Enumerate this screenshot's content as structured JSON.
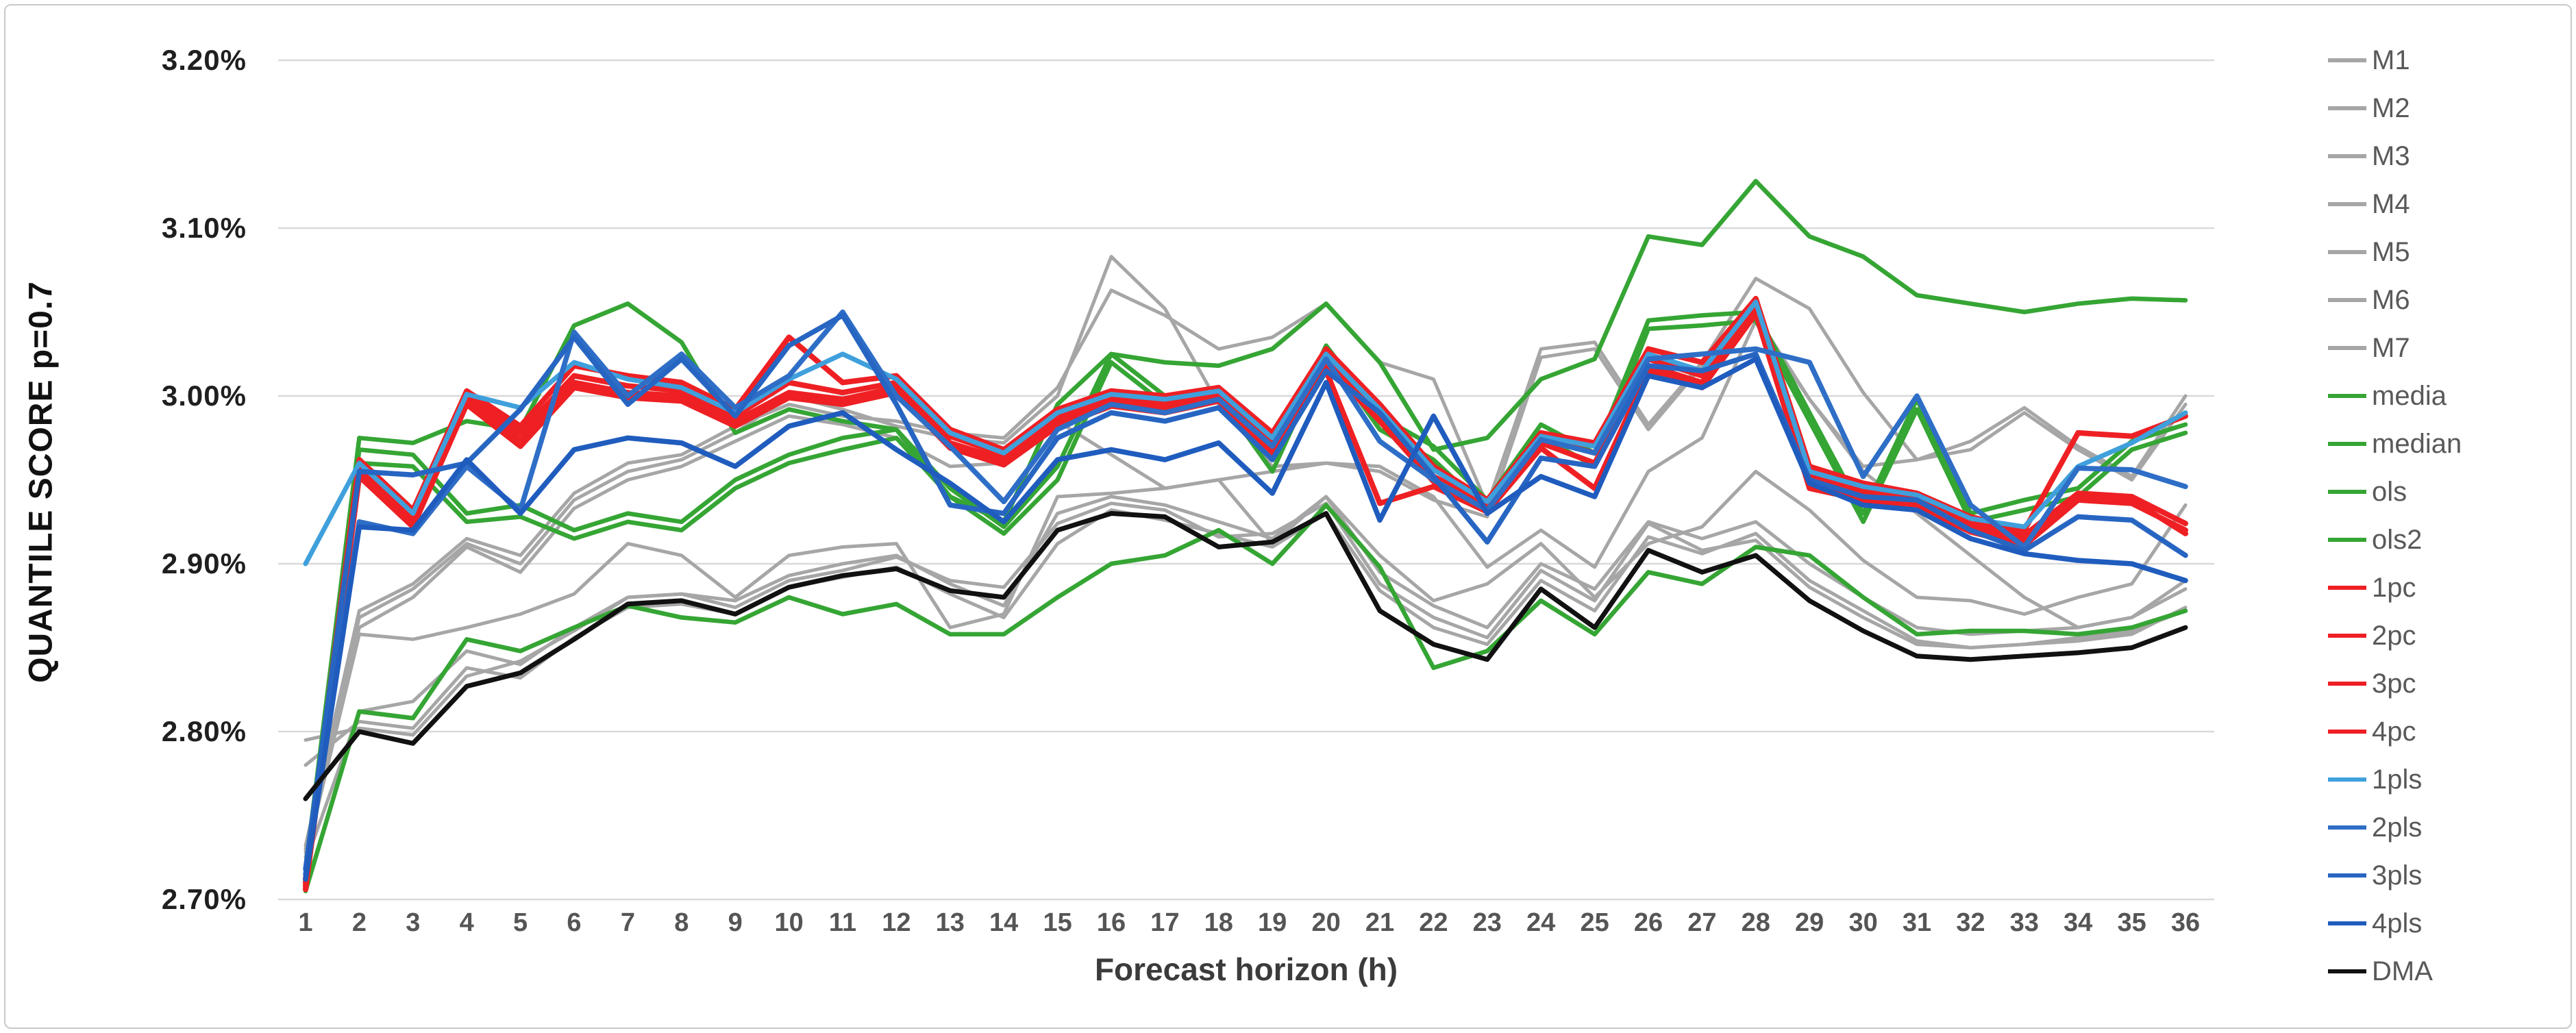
{
  "figure": {
    "background": "#ffffff",
    "border_color": "#c9c9c9"
  },
  "chart_data": {
    "type": "line",
    "title": "",
    "xlabel": "Forecast horizon (h)",
    "ylabel": "QUANTILE SCORE p=0.7",
    "grid": "horizontal",
    "gridline_color": "#d9d9d9",
    "legend_position": "right",
    "x": [
      1,
      2,
      3,
      4,
      5,
      6,
      7,
      8,
      9,
      10,
      11,
      12,
      13,
      14,
      15,
      16,
      17,
      18,
      19,
      20,
      21,
      22,
      23,
      24,
      25,
      26,
      27,
      28,
      29,
      30,
      31,
      32,
      33,
      34,
      35,
      36
    ],
    "y_axis": {
      "min": 2.7,
      "max": 3.2,
      "tick_step": 0.1,
      "unit": "percent",
      "tick_labels": [
        "3.20%",
        "3.10%",
        "3.00%",
        "2.90%",
        "2.80%",
        "2.70%"
      ]
    },
    "series": [
      {
        "name": "M1",
        "color": "#a6a6a6",
        "width": 5,
        "values": [
          2.732,
          2.872,
          2.888,
          2.915,
          2.905,
          2.942,
          2.96,
          2.965,
          2.982,
          2.995,
          2.988,
          2.985,
          2.978,
          2.975,
          3.005,
          3.063,
          3.048,
          3.028,
          3.035,
          3.055,
          3.02,
          3.01,
          2.935,
          3.028,
          3.032,
          2.983,
          3.02,
          3.07,
          3.052,
          3.002,
          2.962,
          2.973,
          2.993,
          2.97,
          2.952,
          3.0
        ]
      },
      {
        "name": "M2",
        "color": "#a6a6a6",
        "width": 5,
        "values": [
          2.73,
          2.868,
          2.885,
          2.912,
          2.9,
          2.938,
          2.955,
          2.962,
          2.978,
          3.0,
          2.992,
          2.982,
          2.975,
          2.972,
          3.0,
          3.083,
          3.052,
          2.995,
          2.958,
          2.96,
          2.958,
          2.94,
          2.898,
          2.92,
          2.898,
          2.955,
          2.975,
          3.045,
          2.998,
          2.955,
          2.93,
          2.905,
          2.88,
          2.862,
          2.868,
          2.89
        ]
      },
      {
        "name": "M3",
        "color": "#a6a6a6",
        "width": 5,
        "values": [
          2.728,
          2.862,
          2.88,
          2.91,
          2.895,
          2.933,
          2.95,
          2.958,
          2.973,
          2.988,
          2.983,
          2.975,
          2.958,
          2.96,
          2.985,
          2.965,
          2.945,
          2.95,
          2.955,
          2.96,
          2.955,
          2.938,
          2.928,
          3.023,
          3.028,
          2.98,
          3.018,
          3.048,
          2.998,
          2.958,
          2.962,
          2.968,
          2.99,
          2.968,
          2.95,
          2.995
        ]
      },
      {
        "name": "M4",
        "color": "#a6a6a6",
        "width": 5,
        "values": [
          2.725,
          2.858,
          2.855,
          2.862,
          2.87,
          2.882,
          2.912,
          2.905,
          2.88,
          2.905,
          2.91,
          2.912,
          2.862,
          2.87,
          2.94,
          2.942,
          2.945,
          2.95,
          2.912,
          2.94,
          2.905,
          2.878,
          2.888,
          2.912,
          2.88,
          2.912,
          2.922,
          2.955,
          2.932,
          2.902,
          2.88,
          2.878,
          2.87,
          2.88,
          2.888,
          2.935
        ]
      },
      {
        "name": "M5",
        "color": "#a6a6a6",
        "width": 5,
        "values": [
          2.722,
          2.812,
          2.818,
          2.848,
          2.84,
          2.862,
          2.88,
          2.882,
          2.878,
          2.893,
          2.9,
          2.905,
          2.888,
          2.875,
          2.93,
          2.94,
          2.935,
          2.925,
          2.915,
          2.94,
          2.895,
          2.875,
          2.862,
          2.9,
          2.885,
          2.925,
          2.915,
          2.925,
          2.9,
          2.88,
          2.862,
          2.858,
          2.86,
          2.862,
          2.868,
          2.885
        ]
      },
      {
        "name": "M6",
        "color": "#a6a6a6",
        "width": 5,
        "values": [
          2.78,
          2.806,
          2.802,
          2.838,
          2.832,
          2.856,
          2.874,
          2.876,
          2.87,
          2.886,
          2.892,
          2.898,
          2.882,
          2.868,
          2.912,
          2.932,
          2.926,
          2.918,
          2.91,
          2.93,
          2.884,
          2.862,
          2.852,
          2.89,
          2.872,
          2.916,
          2.906,
          2.918,
          2.89,
          2.872,
          2.854,
          2.85,
          2.852,
          2.854,
          2.858,
          2.874
        ]
      },
      {
        "name": "M7",
        "color": "#a6a6a6",
        "width": 5,
        "values": [
          2.795,
          2.802,
          2.798,
          2.833,
          2.842,
          2.86,
          2.88,
          2.882,
          2.874,
          2.89,
          2.896,
          2.904,
          2.89,
          2.886,
          2.924,
          2.936,
          2.932,
          2.916,
          2.918,
          2.936,
          2.888,
          2.868,
          2.856,
          2.896,
          2.878,
          2.924,
          2.908,
          2.914,
          2.886,
          2.868,
          2.852,
          2.85,
          2.852,
          2.856,
          2.86,
          2.872
        ]
      },
      {
        "name": "media",
        "color": "#35a534",
        "width": 6.5,
        "values": [
          2.718,
          2.975,
          2.972,
          2.985,
          2.98,
          3.042,
          3.055,
          3.032,
          2.978,
          2.992,
          2.985,
          2.98,
          2.94,
          2.925,
          2.995,
          3.025,
          3.02,
          3.018,
          3.028,
          3.055,
          3.02,
          2.968,
          2.975,
          3.01,
          3.022,
          3.095,
          3.09,
          3.128,
          3.095,
          3.083,
          3.06,
          3.055,
          3.05,
          3.055,
          3.058,
          3.057
        ]
      },
      {
        "name": "median",
        "color": "#35a534",
        "width": 6.5,
        "values": [
          2.712,
          2.968,
          2.965,
          2.93,
          2.935,
          2.92,
          2.93,
          2.925,
          2.95,
          2.965,
          2.975,
          2.98,
          2.945,
          2.922,
          2.958,
          3.025,
          3.0,
          3.005,
          2.962,
          3.03,
          2.988,
          2.97,
          2.938,
          2.983,
          2.966,
          3.045,
          3.048,
          3.05,
          2.99,
          2.93,
          2.998,
          2.93,
          2.938,
          2.945,
          2.973,
          2.983
        ]
      },
      {
        "name": "ols",
        "color": "#35a534",
        "width": 6.5,
        "values": [
          2.708,
          2.96,
          2.958,
          2.925,
          2.928,
          2.915,
          2.925,
          2.92,
          2.945,
          2.96,
          2.968,
          2.975,
          2.94,
          2.918,
          2.95,
          3.02,
          2.995,
          3.0,
          2.955,
          3.025,
          2.98,
          2.962,
          2.932,
          2.976,
          2.958,
          3.04,
          3.042,
          3.045,
          2.985,
          2.925,
          2.992,
          2.925,
          2.932,
          2.94,
          2.968,
          2.978
        ]
      },
      {
        "name": "ols2",
        "color": "#35a534",
        "width": 6.5,
        "values": [
          2.705,
          2.812,
          2.808,
          2.855,
          2.848,
          2.862,
          2.875,
          2.868,
          2.865,
          2.88,
          2.87,
          2.876,
          2.858,
          2.858,
          2.88,
          2.9,
          2.905,
          2.92,
          2.9,
          2.935,
          2.898,
          2.838,
          2.848,
          2.878,
          2.858,
          2.895,
          2.888,
          2.91,
          2.905,
          2.88,
          2.858,
          2.86,
          2.86,
          2.858,
          2.862,
          2.872
        ]
      },
      {
        "name": "1pc",
        "color": "#ee2024",
        "width": 8,
        "values": [
          2.712,
          2.962,
          2.932,
          3.003,
          2.982,
          3.018,
          3.012,
          3.008,
          2.992,
          3.035,
          3.008,
          3.012,
          2.98,
          2.968,
          2.992,
          3.003,
          3.0,
          3.005,
          2.978,
          3.028,
          2.995,
          2.958,
          2.938,
          2.978,
          2.972,
          3.028,
          3.02,
          3.058,
          2.958,
          2.948,
          2.942,
          2.928,
          2.92,
          2.978,
          2.976,
          2.988
        ]
      },
      {
        "name": "2pc",
        "color": "#ee2024",
        "width": 8,
        "values": [
          2.71,
          2.958,
          2.928,
          3.0,
          2.978,
          3.012,
          3.006,
          3.003,
          2.988,
          3.008,
          3.002,
          3.008,
          2.976,
          2.965,
          2.988,
          3.0,
          2.996,
          3.002,
          2.972,
          3.022,
          2.99,
          2.952,
          2.936,
          2.975,
          2.966,
          3.022,
          3.012,
          3.055,
          2.952,
          2.944,
          2.94,
          2.925,
          2.917,
          2.942,
          2.94,
          2.924
        ]
      },
      {
        "name": "3pc",
        "color": "#ee2024",
        "width": 8,
        "values": [
          2.708,
          2.955,
          2.925,
          2.998,
          2.974,
          3.008,
          3.002,
          3.0,
          2.985,
          3.002,
          2.998,
          3.005,
          2.972,
          2.962,
          2.985,
          2.997,
          2.993,
          3.0,
          2.968,
          3.018,
          2.985,
          2.949,
          2.934,
          2.972,
          2.96,
          3.018,
          3.008,
          3.052,
          2.948,
          2.941,
          2.937,
          2.922,
          2.914,
          2.94,
          2.938,
          2.918
        ]
      },
      {
        "name": "4pc",
        "color": "#ee2024",
        "width": 8,
        "values": [
          2.706,
          2.952,
          2.922,
          2.995,
          2.97,
          3.005,
          2.999,
          2.997,
          2.982,
          2.999,
          2.995,
          3.002,
          2.969,
          2.959,
          2.982,
          2.994,
          2.99,
          2.997,
          2.965,
          3.015,
          2.936,
          2.946,
          2.931,
          2.969,
          2.945,
          3.015,
          3.005,
          3.049,
          2.945,
          2.938,
          2.934,
          2.919,
          2.911,
          2.938,
          2.936,
          2.92
        ]
      },
      {
        "name": "1pls",
        "color": "#3fa0dc",
        "width": 7,
        "values": [
          2.9,
          2.96,
          2.93,
          3.001,
          2.993,
          3.02,
          3.01,
          3.005,
          2.99,
          3.01,
          3.025,
          3.01,
          2.978,
          2.966,
          2.99,
          3.001,
          2.998,
          3.003,
          2.975,
          3.025,
          2.992,
          2.956,
          2.937,
          2.976,
          2.97,
          3.025,
          3.015,
          3.056,
          2.955,
          2.946,
          2.941,
          2.927,
          2.922,
          2.958,
          2.972,
          2.99
        ]
      },
      {
        "name": "2pls",
        "color": "#2e6ec6",
        "width": 7.5,
        "values": [
          2.715,
          2.925,
          2.918,
          2.958,
          2.932,
          3.038,
          3.0,
          3.025,
          2.993,
          3.012,
          3.05,
          3.0,
          2.97,
          2.937,
          2.98,
          2.995,
          2.99,
          2.998,
          2.97,
          3.022,
          2.973,
          2.95,
          2.932,
          2.974,
          2.966,
          3.022,
          3.025,
          3.028,
          3.02,
          2.952,
          3.0,
          2.935,
          2.91,
          2.957,
          2.956,
          2.946
        ]
      },
      {
        "name": "3pls",
        "color": "#2765c2",
        "width": 7.5,
        "values": [
          2.718,
          2.955,
          2.953,
          2.96,
          2.992,
          3.035,
          2.995,
          3.022,
          2.988,
          3.03,
          3.048,
          2.995,
          2.935,
          2.93,
          2.975,
          2.99,
          2.985,
          2.993,
          2.962,
          3.015,
          2.99,
          2.952,
          2.913,
          2.963,
          2.958,
          3.018,
          3.015,
          3.025,
          2.95,
          2.94,
          2.938,
          2.92,
          2.908,
          2.928,
          2.926,
          2.905
        ]
      },
      {
        "name": "4pls",
        "color": "#1f5cbe",
        "width": 7.5,
        "values": [
          2.712,
          2.922,
          2.92,
          2.962,
          2.93,
          2.968,
          2.975,
          2.972,
          2.958,
          2.982,
          2.99,
          2.968,
          2.948,
          2.925,
          2.962,
          2.968,
          2.962,
          2.972,
          2.942,
          3.008,
          2.926,
          2.988,
          2.93,
          2.952,
          2.94,
          3.012,
          3.005,
          3.022,
          2.948,
          2.935,
          2.932,
          2.915,
          2.906,
          2.902,
          2.9,
          2.89
        ]
      },
      {
        "name": "DMA",
        "color": "#111111",
        "width": 7,
        "values": [
          2.76,
          2.8,
          2.793,
          2.827,
          2.835,
          2.855,
          2.876,
          2.878,
          2.87,
          2.886,
          2.893,
          2.897,
          2.884,
          2.88,
          2.92,
          2.93,
          2.928,
          2.91,
          2.913,
          2.93,
          2.872,
          2.852,
          2.843,
          2.885,
          2.862,
          2.908,
          2.895,
          2.905,
          2.878,
          2.86,
          2.845,
          2.843,
          2.845,
          2.847,
          2.85,
          2.862
        ]
      }
    ]
  }
}
